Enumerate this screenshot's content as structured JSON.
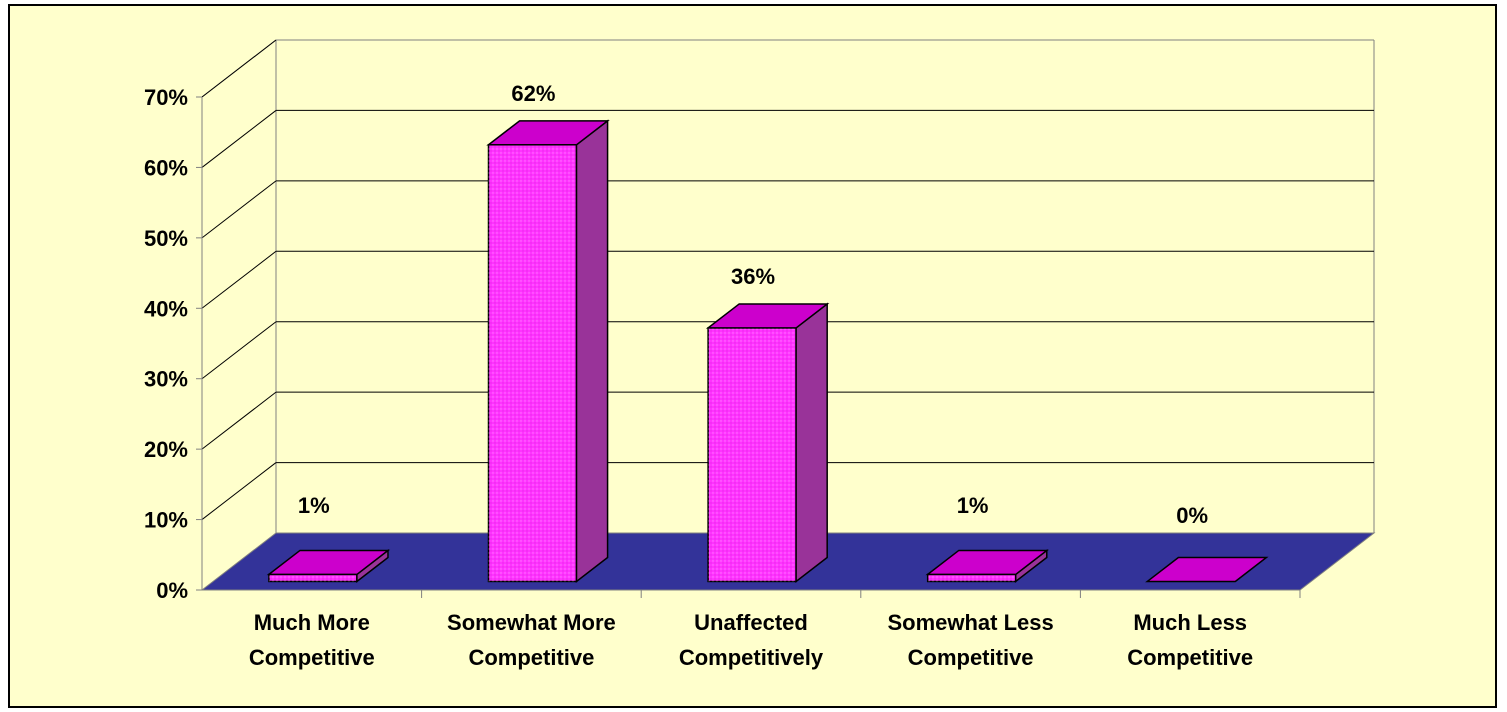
{
  "chart_data": {
    "type": "bar",
    "categories": [
      [
        "Much More",
        "Competitive"
      ],
      [
        "Somewhat More",
        "Competitive"
      ],
      [
        "Unaffected",
        "Competitively"
      ],
      [
        "Somewhat Less",
        "Competitive"
      ],
      [
        "Much Less",
        "Competitive"
      ]
    ],
    "values": [
      1,
      62,
      36,
      1,
      0
    ],
    "data_labels": [
      "1%",
      "62%",
      "36%",
      "1%",
      "0%"
    ],
    "ylim": [
      0,
      70
    ],
    "yticks": [
      "0%",
      "10%",
      "20%",
      "30%",
      "40%",
      "50%",
      "60%",
      "70%"
    ],
    "grid": true,
    "colors": {
      "background": "#ffffcc",
      "floor": "#333399",
      "bar_front": "#ff33ff",
      "bar_top": "#cc00cc",
      "bar_side": "#993399"
    }
  }
}
